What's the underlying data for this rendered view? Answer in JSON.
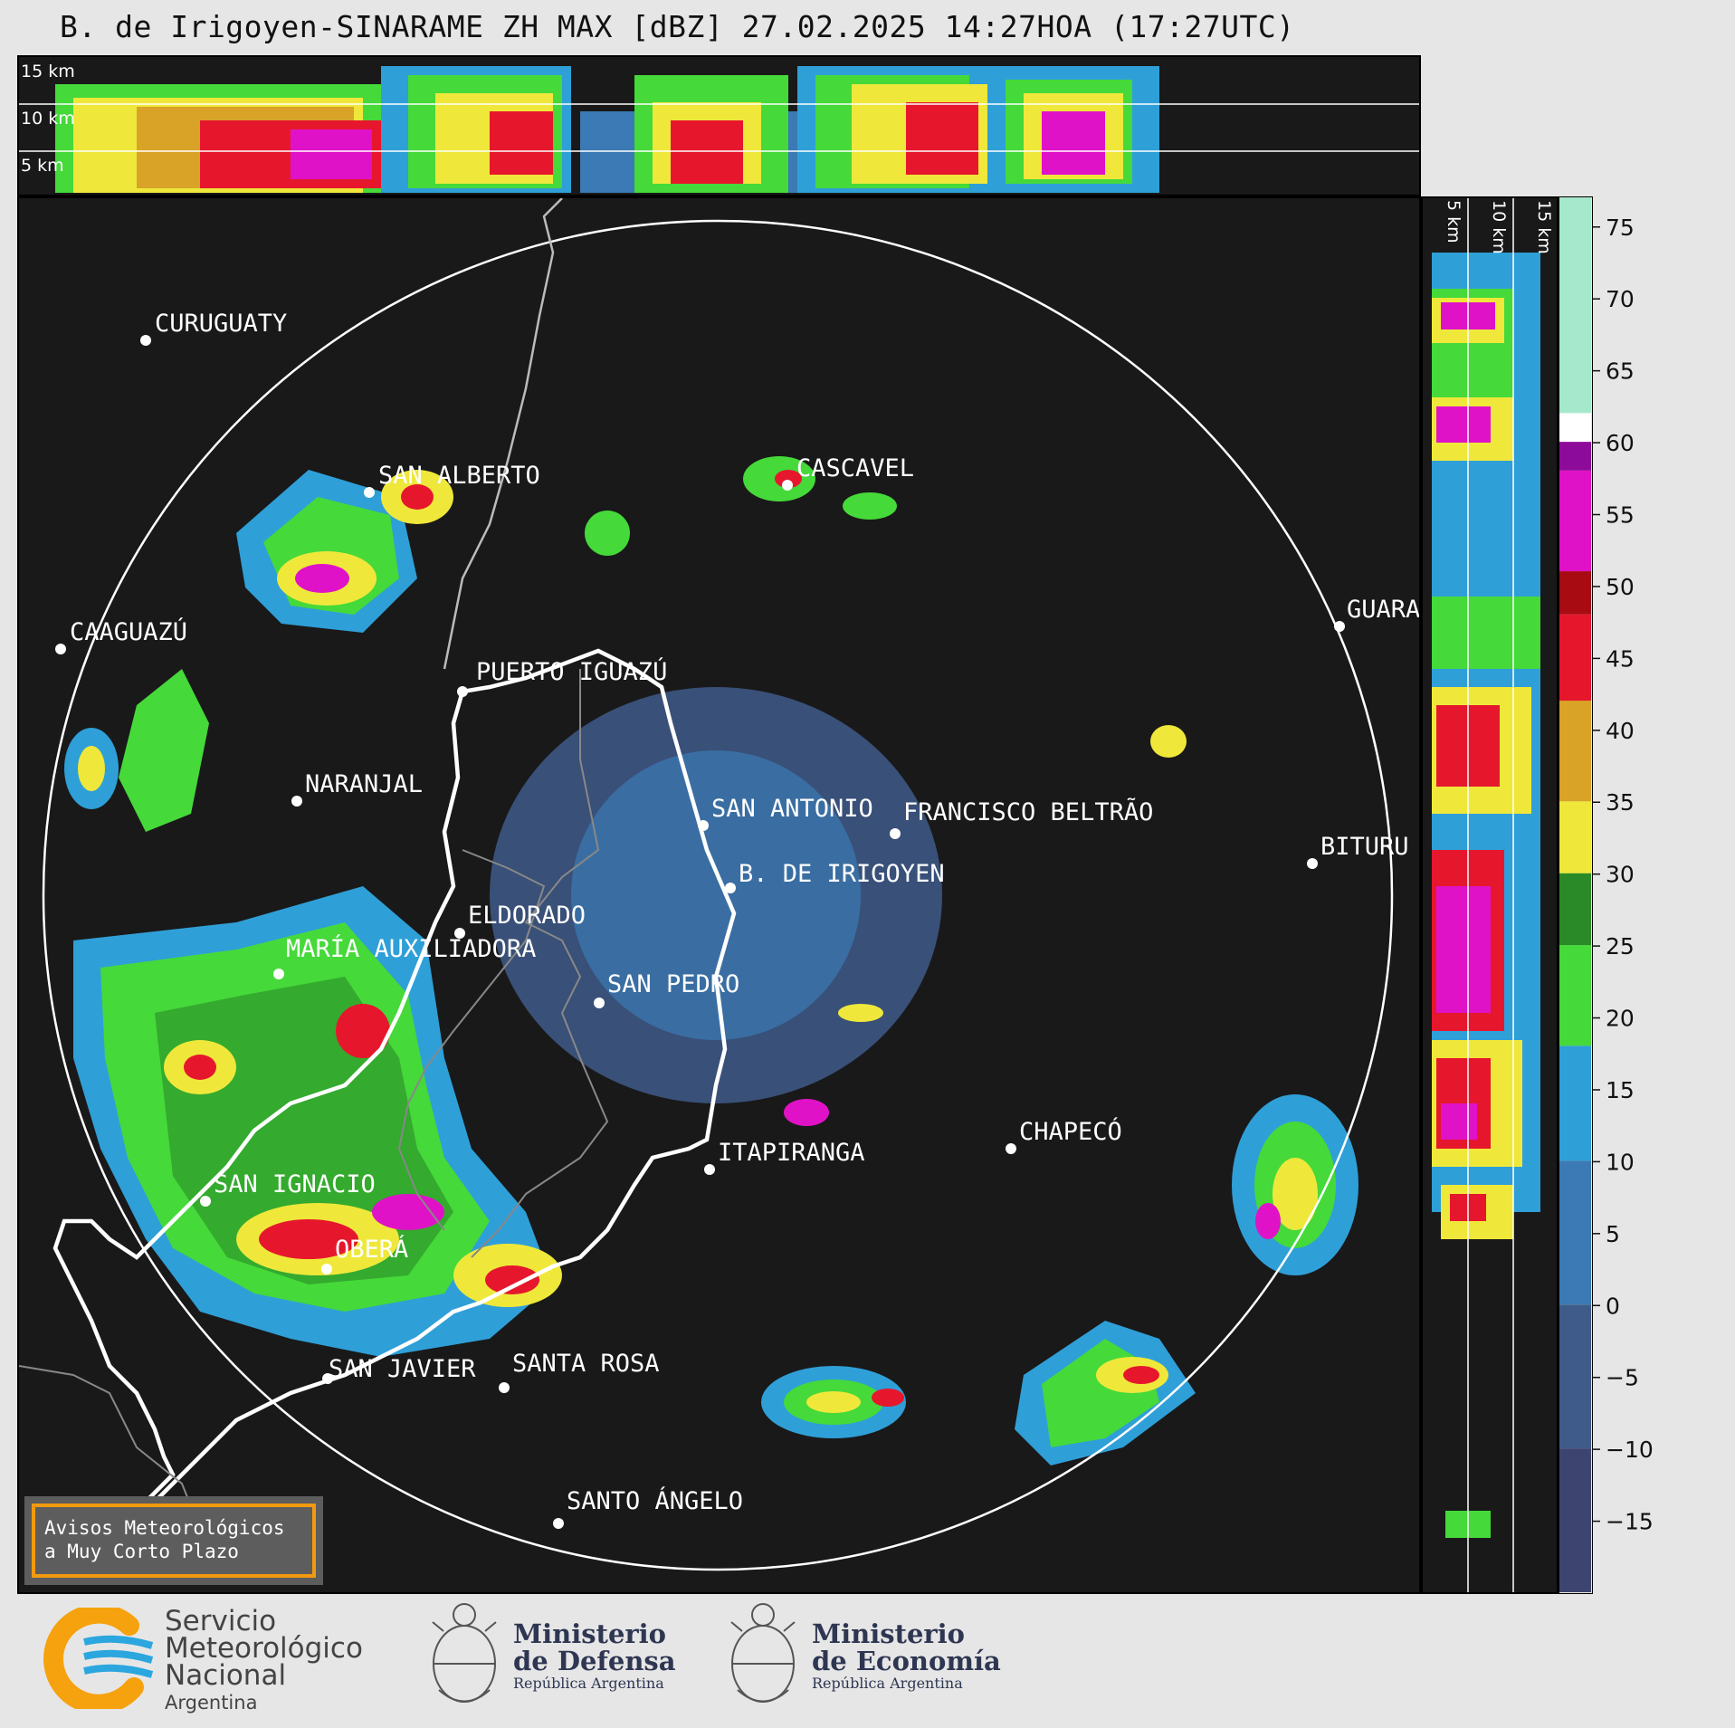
{
  "header": {
    "title": "B. de Irigoyen-SINARAME ZH MAX [dBZ] 27.02.2025 14:27HOA (17:27UTC)"
  },
  "top_panel": {
    "height_labels": [
      "15 km",
      "10 km",
      "5 km"
    ]
  },
  "right_panel": {
    "height_labels": [
      "5 km",
      "10 km",
      "15 km"
    ]
  },
  "colorbar": {
    "unit": "dBZ",
    "min": -20,
    "max": 77,
    "ticks": [
      "75",
      "70",
      "65",
      "60",
      "55",
      "50",
      "45",
      "40",
      "35",
      "30",
      "25",
      "20",
      "15",
      "10",
      "5",
      "0",
      "−5",
      "−10",
      "−15"
    ],
    "tick_values": [
      75,
      70,
      65,
      60,
      55,
      50,
      45,
      40,
      35,
      30,
      25,
      20,
      15,
      10,
      5,
      0,
      -5,
      -10,
      -15
    ],
    "color_stops": [
      {
        "from": -20,
        "to": -10,
        "color": "#3e4470"
      },
      {
        "from": -10,
        "to": 0,
        "color": "#3f5b8a"
      },
      {
        "from": 0,
        "to": 10,
        "color": "#3b7ab4"
      },
      {
        "from": 10,
        "to": 18,
        "color": "#2f9fd8"
      },
      {
        "from": 18,
        "to": 25,
        "color": "#45d93a"
      },
      {
        "from": 25,
        "to": 30,
        "color": "#2a8a27"
      },
      {
        "from": 30,
        "to": 35,
        "color": "#efe83a"
      },
      {
        "from": 35,
        "to": 42,
        "color": "#d8a327"
      },
      {
        "from": 42,
        "to": 48,
        "color": "#e6172d"
      },
      {
        "from": 48,
        "to": 51,
        "color": "#a80b12"
      },
      {
        "from": 51,
        "to": 58,
        "color": "#e012c7"
      },
      {
        "from": 58,
        "to": 60,
        "color": "#8d0b9a"
      },
      {
        "from": 60,
        "to": 62,
        "color": "#ffffff"
      },
      {
        "from": 62,
        "to": 77,
        "color": "#a6e8cc"
      }
    ]
  },
  "map": {
    "cities": [
      {
        "name": "CURUGUATY"
      },
      {
        "name": "SAN ALBERTO"
      },
      {
        "name": "CASCAVEL"
      },
      {
        "name": "CAAGUAZÚ"
      },
      {
        "name": "GUARA"
      },
      {
        "name": "PUERTO IGUAZÚ"
      },
      {
        "name": "NARANJAL"
      },
      {
        "name": "SAN ANTONIO"
      },
      {
        "name": "FRANCISCO BELTRÃO"
      },
      {
        "name": "BITURU"
      },
      {
        "name": "B. DE IRIGOYEN"
      },
      {
        "name": "ELDORADO"
      },
      {
        "name": "MARÍA AUXILIADORA"
      },
      {
        "name": "SAN PEDRO"
      },
      {
        "name": "CHAPECÓ"
      },
      {
        "name": "ITAPIRANGA"
      },
      {
        "name": "SAN IGNACIO"
      },
      {
        "name": "OBERÁ"
      },
      {
        "name": "SAN JAVIER"
      },
      {
        "name": "SANTA ROSA"
      },
      {
        "name": "SANTO ÁNGELO"
      }
    ]
  },
  "warning_box": {
    "line1": "Avisos Meteorológicos",
    "line2": "a Muy Corto Plazo"
  },
  "footer": {
    "smn": {
      "line1": "Servicio",
      "line2": "Meteorológico",
      "line3": "Nacional",
      "line4": "Argentina"
    },
    "defensa": {
      "title1": "Ministerio",
      "title2": "de Defensa",
      "sub": "República Argentina"
    },
    "economia": {
      "title1": "Ministerio",
      "title2": "de Economía",
      "sub": "República Argentina"
    },
    "colors": {
      "smn_orange": "#f6a20e",
      "smn_blue": "#2ba6de"
    }
  }
}
